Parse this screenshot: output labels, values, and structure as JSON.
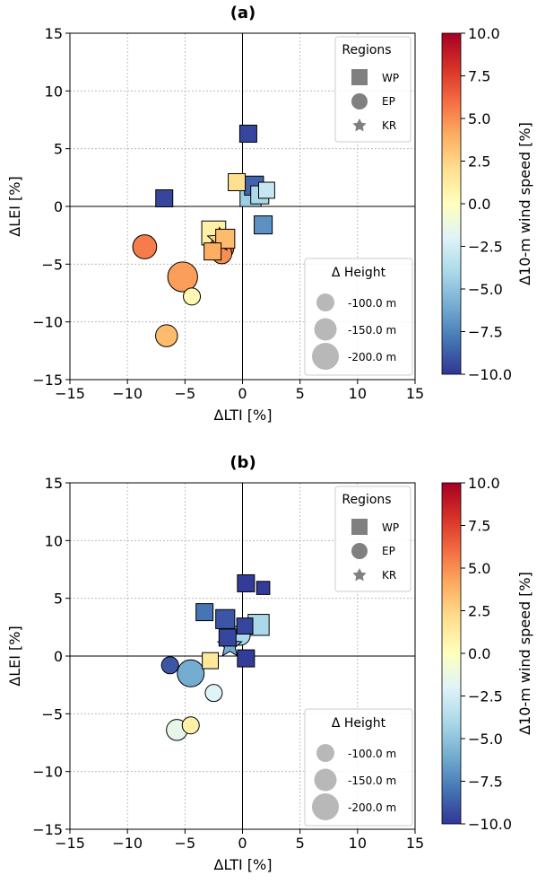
{
  "chart_data": [
    {
      "type": "scatter",
      "panel_label": "(a)",
      "xlabel": "ΔLTI [%]",
      "ylabel": "ΔLEI [%]",
      "xlim": [
        -15,
        15
      ],
      "ylim": [
        -15,
        15
      ],
      "xticks": [
        "−15",
        "−10",
        "−5",
        "0",
        "5",
        "10",
        "15"
      ],
      "yticks": [
        "15",
        "10",
        "5",
        "0",
        "−5",
        "−10",
        "−15"
      ],
      "grid": true,
      "points": [
        {
          "x": 0.5,
          "y": 6.3,
          "region": "WP",
          "height": -100,
          "wind": -9.5
        },
        {
          "x": -6.8,
          "y": 0.7,
          "region": "WP",
          "height": -100,
          "wind": -9.5
        },
        {
          "x": -0.5,
          "y": 2.1,
          "region": "WP",
          "height": -100,
          "wind": 2.0
        },
        {
          "x": 1.0,
          "y": 1.8,
          "region": "WP",
          "height": -120,
          "wind": -8.5
        },
        {
          "x": 2.1,
          "y": 1.4,
          "region": "WP",
          "height": -90,
          "wind": -3.0
        },
        {
          "x": 1.5,
          "y": 1.0,
          "region": "WP",
          "height": -110,
          "wind": -4.0
        },
        {
          "x": 0.7,
          "y": 0.9,
          "region": "WP",
          "height": -140,
          "wind": -4.5
        },
        {
          "x": 1.8,
          "y": -1.6,
          "region": "WP",
          "height": -110,
          "wind": -7.0
        },
        {
          "x": -2.5,
          "y": -2.3,
          "region": "WP",
          "height": -170,
          "wind": 1.0
        },
        {
          "x": -1.5,
          "y": -2.8,
          "region": "WP",
          "height": -120,
          "wind": 3.5
        },
        {
          "x": -2.6,
          "y": -3.9,
          "region": "WP",
          "height": -100,
          "wind": 4.0
        },
        {
          "x": -1.8,
          "y": -3.6,
          "region": "EP",
          "height": -170,
          "wind": 6.0
        },
        {
          "x": -1.8,
          "y": -4.1,
          "region": "EP",
          "height": -130,
          "wind": 5.0
        },
        {
          "x": -8.5,
          "y": -3.5,
          "region": "EP",
          "height": -170,
          "wind": 5.5
        },
        {
          "x": -5.2,
          "y": -6.1,
          "region": "EP",
          "height": -230,
          "wind": 4.5
        },
        {
          "x": -4.4,
          "y": -7.8,
          "region": "EP",
          "height": -100,
          "wind": 0.5
        },
        {
          "x": -6.6,
          "y": -11.2,
          "region": "EP",
          "height": -150,
          "wind": 3.5
        },
        {
          "x": -2.0,
          "y": -2.9,
          "region": "KR",
          "height": -130,
          "wind": 2.5
        }
      ],
      "legend_regions": {
        "title": "Regions",
        "items": [
          {
            "label": "WP",
            "marker": "square"
          },
          {
            "label": "EP",
            "marker": "circle"
          },
          {
            "label": "KR",
            "marker": "star"
          }
        ]
      },
      "legend_height": {
        "title": "Δ Height",
        "items": [
          {
            "label": "-100.0 m",
            "value": -100
          },
          {
            "label": "-150.0 m",
            "value": -150
          },
          {
            "label": "-200.0 m",
            "value": -200
          }
        ]
      },
      "colorbar": {
        "label": "Δ10-m wind speed [%]",
        "range": [
          -10,
          10
        ],
        "ticks": [
          "10.0",
          "7.5",
          "5.0",
          "2.5",
          "0.0",
          "−2.5",
          "−5.0",
          "−7.5",
          "−10.0"
        ],
        "colormap": "RdYlBu_r"
      }
    },
    {
      "type": "scatter",
      "panel_label": "(b)",
      "xlabel": "ΔLTI [%]",
      "ylabel": "ΔLEI [%]",
      "xlim": [
        -15,
        15
      ],
      "ylim": [
        -15,
        15
      ],
      "xticks": [
        "−15",
        "−10",
        "−5",
        "0",
        "5",
        "10",
        "15"
      ],
      "yticks": [
        "15",
        "10",
        "5",
        "0",
        "−5",
        "−10",
        "−15"
      ],
      "grid": true,
      "points": [
        {
          "x": 0.3,
          "y": 6.3,
          "region": "WP",
          "height": -100,
          "wind": -9.8
        },
        {
          "x": 1.8,
          "y": 5.9,
          "region": "WP",
          "height": -60,
          "wind": -9.8
        },
        {
          "x": -3.3,
          "y": 3.8,
          "region": "WP",
          "height": -100,
          "wind": -8.0
        },
        {
          "x": -1.5,
          "y": 3.2,
          "region": "WP",
          "height": -120,
          "wind": -9.0
        },
        {
          "x": 0.2,
          "y": 2.6,
          "region": "WP",
          "height": -90,
          "wind": -9.5
        },
        {
          "x": 1.4,
          "y": 2.7,
          "region": "WP",
          "height": -140,
          "wind": -4.0
        },
        {
          "x": -1.3,
          "y": 1.6,
          "region": "WP",
          "height": -100,
          "wind": -9.5
        },
        {
          "x": 0.3,
          "y": -0.2,
          "region": "WP",
          "height": -100,
          "wind": -9.8
        },
        {
          "x": -2.8,
          "y": -0.4,
          "region": "WP",
          "height": -90,
          "wind": 1.5
        },
        {
          "x": -0.2,
          "y": 1.8,
          "region": "EP",
          "height": -130,
          "wind": -4.0
        },
        {
          "x": -6.3,
          "y": -0.8,
          "region": "EP",
          "height": -100,
          "wind": -9.0
        },
        {
          "x": -4.5,
          "y": -1.5,
          "region": "EP",
          "height": -200,
          "wind": -6.0
        },
        {
          "x": -2.5,
          "y": -3.2,
          "region": "EP",
          "height": -100,
          "wind": -2.0
        },
        {
          "x": -4.5,
          "y": -6.0,
          "region": "EP",
          "height": -100,
          "wind": 1.0
        },
        {
          "x": -5.7,
          "y": -6.4,
          "region": "EP",
          "height": -140,
          "wind": -1.5
        },
        {
          "x": -1.1,
          "y": 0.9,
          "region": "KR",
          "height": -130,
          "wind": -6.0
        }
      ],
      "legend_regions": {
        "title": "Regions",
        "items": [
          {
            "label": "WP",
            "marker": "square"
          },
          {
            "label": "EP",
            "marker": "circle"
          },
          {
            "label": "KR",
            "marker": "star"
          }
        ]
      },
      "legend_height": {
        "title": "Δ Height",
        "items": [
          {
            "label": "-100.0 m",
            "value": -100
          },
          {
            "label": "-150.0 m",
            "value": -150
          },
          {
            "label": "-200.0 m",
            "value": -200
          }
        ]
      },
      "colorbar": {
        "label": "Δ10-m wind speed [%]",
        "range": [
          -10,
          10
        ],
        "ticks": [
          "10.0",
          "7.5",
          "5.0",
          "2.5",
          "0.0",
          "−2.5",
          "−5.0",
          "−7.5",
          "−10.0"
        ],
        "colormap": "RdYlBu_r"
      }
    }
  ]
}
